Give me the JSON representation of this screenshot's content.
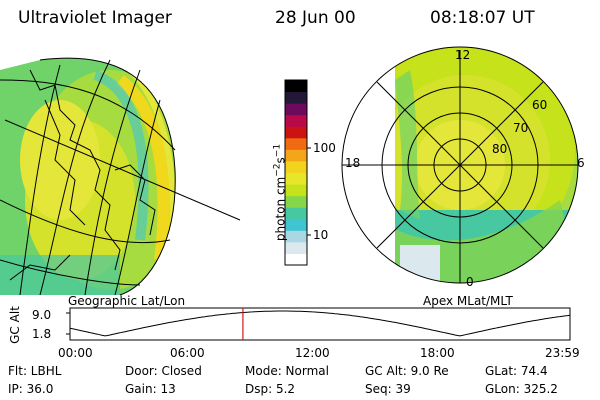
{
  "header": {
    "instrument": "Ultraviolet Imager",
    "date": "28 Jun 00",
    "time": "08:18:07 UT"
  },
  "left_panel": {
    "label": "Geographic Lat/Lon"
  },
  "right_panel": {
    "label": "Apex MLat/MLT",
    "mlt_labels": {
      "top": "12",
      "left": "18",
      "right": "6",
      "bottom": "0"
    },
    "lat_labels": [
      "60",
      "70",
      "80"
    ]
  },
  "colorbar": {
    "unit_label": "photon cm",
    "unit_sup1": "−2",
    "unit_mid": "s",
    "unit_sup2": "−1",
    "ticks": [
      {
        "label": "100",
        "value": 100
      },
      {
        "label": "10",
        "value": 10
      }
    ],
    "colors": [
      "#ffffff",
      "#dbe8ee",
      "#a9d8e2",
      "#3fc5d2",
      "#48c8a0",
      "#86d64a",
      "#c6e21a",
      "#e8e62a",
      "#f3d41c",
      "#f5a51a",
      "#ef6a10",
      "#cc1212",
      "#b80a4a",
      "#6d0a5c",
      "#241838",
      "#000000"
    ]
  },
  "timeline": {
    "axis_label": "GC Alt",
    "y_labels": [
      "9.0",
      "1.8"
    ],
    "x_labels": [
      "00:00",
      "06:00",
      "12:00",
      "18:00",
      "23:59"
    ],
    "current_time_hours": 8.3
  },
  "info": {
    "row1": [
      "Flt: LBHL",
      "Door: Closed",
      "Mode: Normal",
      "GC Alt: 9.0 Re",
      "GLat:  74.4"
    ],
    "row2": [
      "IP: 36.0",
      "Gain: 13",
      "Dsp:     5.2",
      "Seq: 39",
      "GLon: 325.2"
    ]
  }
}
